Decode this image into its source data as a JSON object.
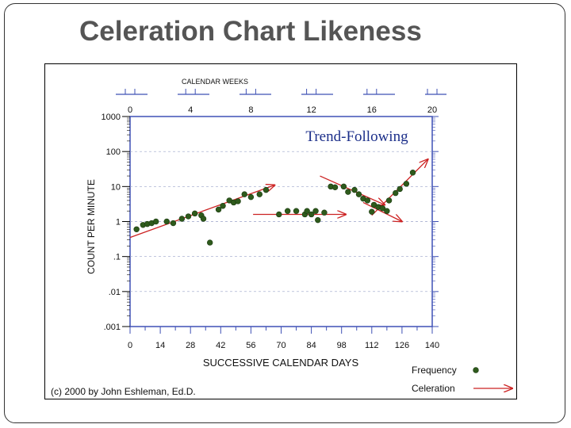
{
  "slide": {
    "title": "Celeration Chart Likeness"
  },
  "chart_data": {
    "type": "scatter",
    "subtype": "standard-celeration-chart",
    "title": "Trend-Following",
    "xlabel": "SUCCESSIVE CALENDAR DAYS",
    "ylabel": "COUNT PER MINUTE",
    "top_axis_label": "CALENDAR WEEKS",
    "xlim": [
      0,
      140
    ],
    "ylim": [
      0.001,
      1000
    ],
    "yscale": "log",
    "x_ticks": [
      0,
      14,
      28,
      42,
      56,
      70,
      84,
      98,
      112,
      126,
      140
    ],
    "top_ticks": [
      0,
      4,
      8,
      12,
      16,
      20
    ],
    "y_ticks": [
      {
        "value": 1000,
        "label": "1000"
      },
      {
        "value": 100,
        "label": "100"
      },
      {
        "value": 10,
        "label": "10"
      },
      {
        "value": 1,
        "label": "1"
      },
      {
        "value": 0.1,
        "label": ".1"
      },
      {
        "value": 0.01,
        "label": ".01"
      },
      {
        "value": 0.001,
        "label": ".001"
      }
    ],
    "grid": true,
    "series": [
      {
        "name": "Frequency",
        "color": "#2e5a1c",
        "points": [
          [
            3,
            0.6
          ],
          [
            6,
            0.8
          ],
          [
            8,
            0.85
          ],
          [
            10,
            0.9
          ],
          [
            12,
            1.0
          ],
          [
            17,
            1.0
          ],
          [
            20,
            0.9
          ],
          [
            24,
            1.2
          ],
          [
            27,
            1.4
          ],
          [
            30,
            1.7
          ],
          [
            33,
            1.5
          ],
          [
            34,
            1.2
          ],
          [
            37,
            0.25
          ],
          [
            41,
            2.2
          ],
          [
            43,
            2.8
          ],
          [
            46,
            4.0
          ],
          [
            48,
            3.5
          ],
          [
            50,
            3.8
          ],
          [
            53,
            6.0
          ],
          [
            56,
            5.0
          ],
          [
            60,
            6.0
          ],
          [
            63,
            8.0
          ],
          [
            69,
            1.6
          ],
          [
            73,
            2.0
          ],
          [
            77,
            2.0
          ],
          [
            81,
            1.6
          ],
          [
            82,
            2.0
          ],
          [
            84,
            1.6
          ],
          [
            86,
            2.0
          ],
          [
            87,
            1.1
          ],
          [
            90,
            1.8
          ],
          [
            93,
            10
          ],
          [
            95,
            9.5
          ],
          [
            99,
            10
          ],
          [
            101,
            7
          ],
          [
            104,
            8
          ],
          [
            106,
            6
          ],
          [
            108,
            4.5
          ],
          [
            110,
            4
          ],
          [
            112,
            1.9
          ],
          [
            113,
            3.0
          ],
          [
            115,
            2.6
          ],
          [
            117,
            2.4
          ],
          [
            119,
            2.0
          ],
          [
            120,
            4.0
          ],
          [
            123,
            6.5
          ],
          [
            125,
            8.5
          ],
          [
            128,
            12
          ],
          [
            131,
            25
          ]
        ]
      }
    ],
    "celeration_lines": [
      {
        "from": [
          0,
          0.35
        ],
        "to": [
          67,
          11
        ]
      },
      {
        "from": [
          57,
          1.6
        ],
        "to": [
          100,
          1.6
        ]
      },
      {
        "from": [
          88,
          20
        ],
        "to": [
          118,
          3.0
        ]
      },
      {
        "from": [
          108,
          3.5
        ],
        "to": [
          126,
          1.0
        ]
      },
      {
        "from": [
          112,
          1.5
        ],
        "to": [
          138,
          60
        ]
      }
    ],
    "legend": [
      {
        "label": "Frequency",
        "marker": "dot"
      },
      {
        "label": "Celeration",
        "marker": "arrow"
      }
    ],
    "celeration_color": "#cc2222",
    "title_color": "#1c2f8a",
    "copyright": "(c) 2000 by John Eshleman, Ed.D."
  }
}
